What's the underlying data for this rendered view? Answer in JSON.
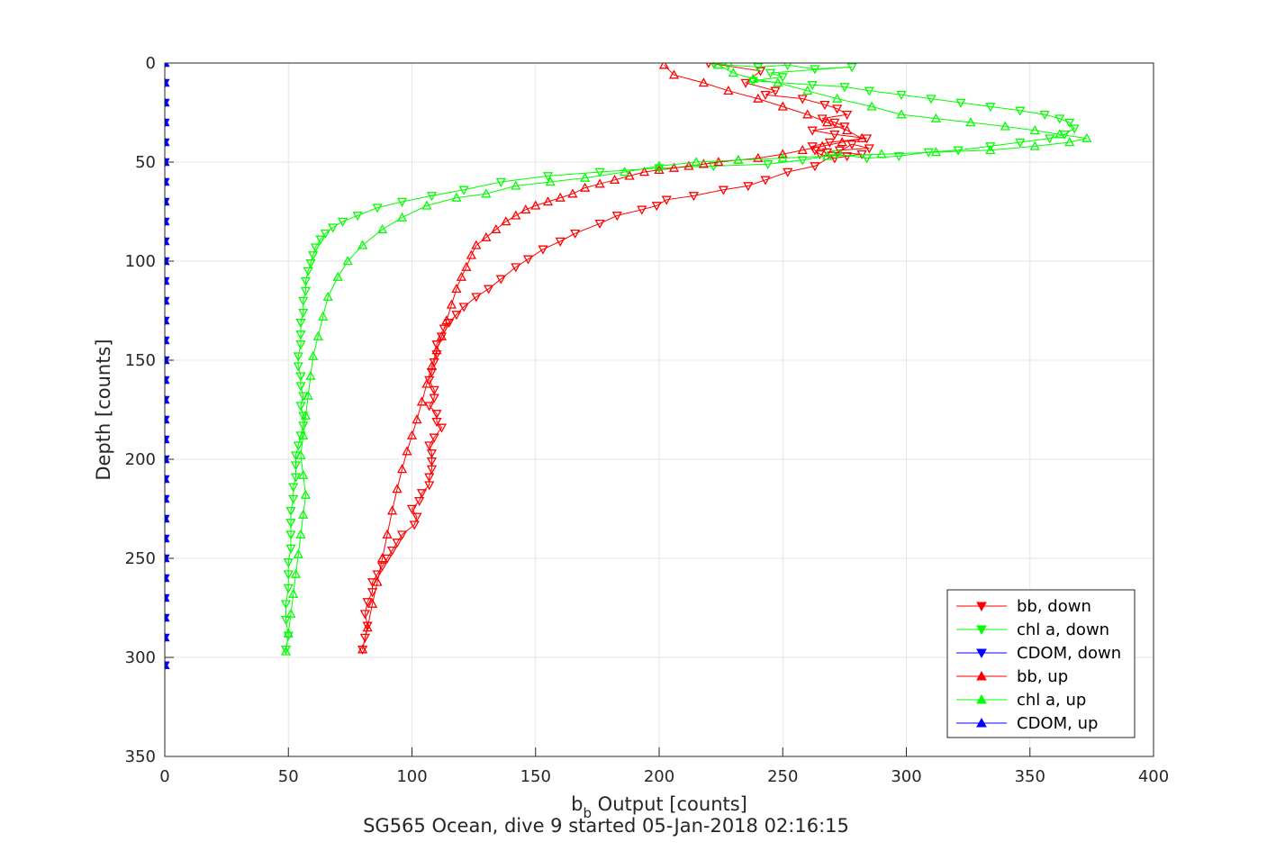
{
  "chart_data": {
    "type": "scatter",
    "xlabel_main": "b",
    "xlabel_sub": "b",
    "xlabel_rest": " Output [counts]",
    "ylabel": "Depth [counts]",
    "subtitle": "SG565 Ocean, dive 9 started 05-Jan-2018 02:16:15",
    "xlim": [
      0,
      400
    ],
    "ylim": [
      0,
      350
    ],
    "y_reversed": true,
    "grid": true,
    "xticks": [
      0,
      50,
      100,
      150,
      200,
      250,
      300,
      350,
      400
    ],
    "yticks": [
      0,
      50,
      100,
      150,
      200,
      250,
      300,
      350
    ],
    "legend_position": "bottom-right",
    "colors": {
      "red": "#ff0000",
      "green": "#00ff00",
      "blue": "#0000ff",
      "axis": "#262626",
      "grid": "#e6e6e6"
    },
    "series": [
      {
        "name": "bb, down",
        "color": "#ff0000",
        "marker": "triangle-down",
        "x": [
          220,
          241,
          235,
          247,
          243,
          258,
          267,
          272,
          276,
          266,
          271,
          275,
          262,
          271,
          284,
          269,
          262,
          263,
          265,
          271,
          276,
          282,
          268,
          273,
          285,
          278,
          263,
          252,
          243,
          236,
          226,
          214,
          203,
          199,
          193,
          183,
          176,
          166,
          160,
          153,
          147,
          142,
          136,
          131,
          126,
          121,
          118,
          115,
          113,
          112,
          110,
          110,
          109,
          108,
          107,
          109,
          109,
          107,
          110,
          110,
          112,
          109,
          107,
          108,
          108,
          108,
          107,
          107,
          104,
          103,
          100,
          102,
          101,
          96,
          94,
          92,
          90,
          88,
          86,
          84,
          84,
          82,
          81,
          82,
          81,
          80
        ],
        "y": [
          0,
          4,
          10,
          14,
          16,
          18,
          21,
          23,
          26,
          28,
          30,
          32,
          34,
          36,
          38,
          40,
          42,
          44,
          46,
          48,
          47,
          46,
          45,
          44,
          43,
          41,
          52,
          55,
          59,
          62,
          64,
          67,
          69,
          72,
          74,
          77,
          81,
          86,
          90,
          94,
          99,
          103,
          109,
          114,
          118,
          123,
          127,
          131,
          134,
          138,
          142,
          147,
          151,
          156,
          160,
          165,
          169,
          173,
          177,
          181,
          184,
          189,
          193,
          197,
          201,
          205,
          209,
          213,
          217,
          221,
          225,
          229,
          233,
          238,
          242,
          246,
          250,
          254,
          258,
          262,
          267,
          272,
          278,
          284,
          290,
          296
        ]
      },
      {
        "name": "chl a, down",
        "color": "#00ff00",
        "marker": "triangle-down",
        "x": [
          222,
          228,
          240,
          252,
          263,
          278,
          245,
          250,
          238,
          262,
          275,
          285,
          298,
          310,
          322,
          334,
          346,
          356,
          362,
          366,
          368,
          364,
          358,
          346,
          334,
          321,
          309,
          297,
          284,
          272,
          258,
          244,
          222,
          200,
          176,
          155,
          136,
          121,
          108,
          96,
          86,
          78,
          72,
          68,
          65,
          63,
          61,
          60,
          59,
          58,
          57,
          57,
          56,
          56,
          55,
          55,
          55,
          54,
          54,
          55,
          55,
          56,
          55,
          56,
          56,
          55,
          54,
          53,
          53,
          53,
          52,
          52,
          51,
          51,
          51,
          51,
          50,
          50,
          50,
          49,
          49,
          50,
          49
        ],
        "y": [
          0,
          1,
          2,
          1,
          3,
          2,
          5,
          7,
          9,
          11,
          12,
          14,
          16,
          18,
          20,
          22,
          24,
          26,
          28,
          30,
          33,
          36,
          38,
          40,
          42,
          44,
          45,
          47,
          48,
          46,
          49,
          51,
          52,
          53,
          55,
          57,
          60,
          64,
          67,
          70,
          73,
          77,
          80,
          83,
          86,
          89,
          93,
          97,
          101,
          105,
          110,
          115,
          120,
          126,
          131,
          137,
          142,
          148,
          153,
          158,
          163,
          168,
          173,
          178,
          183,
          188,
          193,
          198,
          203,
          209,
          214,
          220,
          226,
          232,
          238,
          245,
          252,
          258,
          265,
          273,
          281,
          289,
          296
        ]
      },
      {
        "name": "CDOM, down",
        "color": "#0000ff",
        "marker": "triangle-down",
        "x": [
          0,
          0,
          0,
          0,
          0,
          0,
          0,
          0,
          0,
          0,
          0,
          0,
          0,
          0,
          0,
          0,
          0,
          0,
          0,
          0,
          0,
          0,
          0,
          0,
          0,
          0,
          0,
          0,
          0,
          0,
          0
        ],
        "y": [
          0,
          10,
          20,
          30,
          40,
          50,
          60,
          70,
          80,
          90,
          100,
          110,
          120,
          130,
          140,
          150,
          160,
          170,
          180,
          190,
          200,
          210,
          220,
          230,
          240,
          250,
          260,
          270,
          280,
          290,
          304
        ]
      },
      {
        "name": "bb, up",
        "color": "#ff0000",
        "marker": "triangle-up",
        "x": [
          80,
          82,
          84,
          86,
          88,
          90,
          92,
          94,
          96,
          98,
          100,
          102,
          104,
          106,
          108,
          110,
          112,
          114,
          116,
          118,
          120,
          122,
          124,
          126,
          130,
          134,
          138,
          142,
          146,
          150,
          155,
          160,
          165,
          170,
          176,
          182,
          188,
          194,
          200,
          206,
          212,
          218,
          224,
          232,
          240,
          250,
          258,
          266,
          274,
          282,
          276,
          268,
          260,
          250,
          240,
          228,
          218,
          206,
          202
        ],
        "y": [
          296,
          285,
          273,
          262,
          250,
          238,
          226,
          215,
          205,
          196,
          188,
          180,
          171,
          162,
          153,
          145,
          138,
          130,
          122,
          114,
          108,
          103,
          97,
          92,
          88,
          84,
          80,
          77,
          74,
          72,
          70,
          68,
          66,
          63,
          61,
          59,
          57,
          55,
          54,
          53,
          52,
          51,
          50,
          49,
          48,
          46,
          44,
          42,
          40,
          38,
          34,
          30,
          26,
          22,
          18,
          14,
          10,
          6,
          1
        ]
      },
      {
        "name": "chl a, up",
        "color": "#00ff00",
        "marker": "triangle-up",
        "x": [
          49,
          50,
          51,
          52,
          53,
          54,
          55,
          56,
          57,
          56,
          55,
          56,
          57,
          58,
          59,
          60,
          62,
          64,
          66,
          70,
          74,
          80,
          88,
          96,
          106,
          118,
          130,
          142,
          156,
          170,
          186,
          200,
          215,
          232,
          250,
          268,
          290,
          312,
          334,
          352,
          366,
          373,
          362,
          352,
          340,
          326,
          312,
          298,
          286,
          272,
          260,
          248,
          238,
          230,
          224
        ],
        "y": [
          297,
          288,
          278,
          268,
          258,
          248,
          238,
          228,
          218,
          208,
          198,
          188,
          178,
          168,
          158,
          148,
          138,
          128,
          118,
          108,
          100,
          92,
          84,
          78,
          72,
          68,
          66,
          62,
          60,
          58,
          55,
          52,
          50,
          49,
          48,
          47,
          46,
          45,
          44,
          42,
          40,
          38,
          36,
          34,
          32,
          30,
          28,
          26,
          22,
          18,
          14,
          10,
          8,
          5,
          1
        ]
      },
      {
        "name": "CDOM, up",
        "color": "#0000ff",
        "marker": "triangle-up",
        "x": [
          0,
          0,
          0,
          0,
          0,
          0,
          0,
          0,
          0,
          0,
          0,
          0,
          0,
          0,
          0,
          0,
          0,
          0,
          0,
          0,
          0,
          0,
          0,
          0,
          0,
          0,
          0,
          0,
          0,
          0,
          0
        ],
        "y": [
          0,
          10,
          20,
          30,
          40,
          50,
          60,
          70,
          80,
          90,
          100,
          110,
          120,
          130,
          140,
          150,
          160,
          170,
          180,
          190,
          200,
          210,
          220,
          230,
          240,
          250,
          260,
          270,
          280,
          290,
          304
        ]
      }
    ]
  }
}
